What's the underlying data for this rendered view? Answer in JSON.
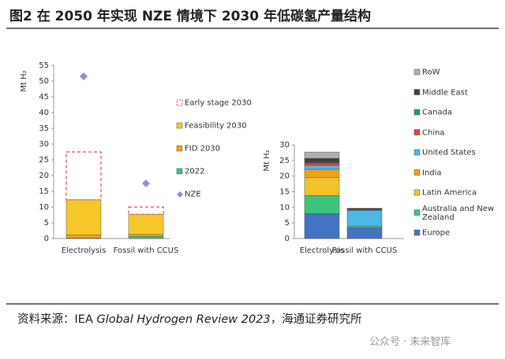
{
  "header": {
    "title": "图2  在 2050 年实现 NZE 情境下 2030 年低碳氢产量结构"
  },
  "chart_data": [
    {
      "type": "bar",
      "stacked": true,
      "ylabel": "Mt H₂",
      "categories": [
        "Electrolysis",
        "Fossil with CCUS"
      ],
      "ylim": [
        0,
        55
      ],
      "yticks": [
        0,
        5,
        10,
        15,
        20,
        25,
        30,
        35,
        40,
        45,
        50,
        55
      ],
      "series": [
        {
          "name": "2022",
          "color": "#3cc47c",
          "values": [
            0.1,
            0.7
          ]
        },
        {
          "name": "FID 2030",
          "color": "#f0a020",
          "values": [
            1.0,
            0.6
          ]
        },
        {
          "name": "Feasibility 2030",
          "color": "#f7c72a",
          "values": [
            11.2,
            6.4
          ]
        },
        {
          "name": "Early stage 2030",
          "color": "#e05050",
          "dashed": true,
          "values": [
            15.2,
            2.3
          ]
        }
      ],
      "markers": {
        "name": "NZE",
        "color": "#9b8fd0",
        "values": [
          51.5,
          17.5
        ]
      }
    },
    {
      "type": "bar",
      "stacked": true,
      "ylabel": "Mt H₂",
      "categories": [
        "Electrolysis",
        "Fossil with CCUS"
      ],
      "ylim": [
        0,
        30
      ],
      "yticks": [
        0,
        5,
        10,
        15,
        20,
        25,
        30
      ],
      "series": [
        {
          "name": "Europe",
          "color": "#4472c4",
          "values": [
            8.0,
            3.5
          ]
        },
        {
          "name": "Australia and New Zealand",
          "color": "#3cc47c",
          "values": [
            5.8,
            0.5
          ]
        },
        {
          "name": "Latin America",
          "color": "#f2c12e",
          "values": [
            5.8,
            0
          ]
        },
        {
          "name": "India",
          "color": "#f0a020",
          "values": [
            2.6,
            0
          ]
        },
        {
          "name": "United States",
          "color": "#4bb8e8",
          "values": [
            1.2,
            5.0
          ]
        },
        {
          "name": "China",
          "color": "#e04040",
          "values": [
            0.6,
            0
          ]
        },
        {
          "name": "Canada",
          "color": "#2a9a6a",
          "values": [
            0.3,
            0.2
          ]
        },
        {
          "name": "Middle East",
          "color": "#404040",
          "values": [
            1.4,
            0.5
          ]
        },
        {
          "name": "RoW",
          "color": "#b0b0b0",
          "values": [
            2.0,
            0
          ]
        }
      ]
    }
  ],
  "source": {
    "prefix": "资料来源：IEA ",
    "italic": "Global Hydrogen Review 2023",
    "suffix": "，海通证券研究所"
  },
  "watermark": "公众号 · 未来智库"
}
